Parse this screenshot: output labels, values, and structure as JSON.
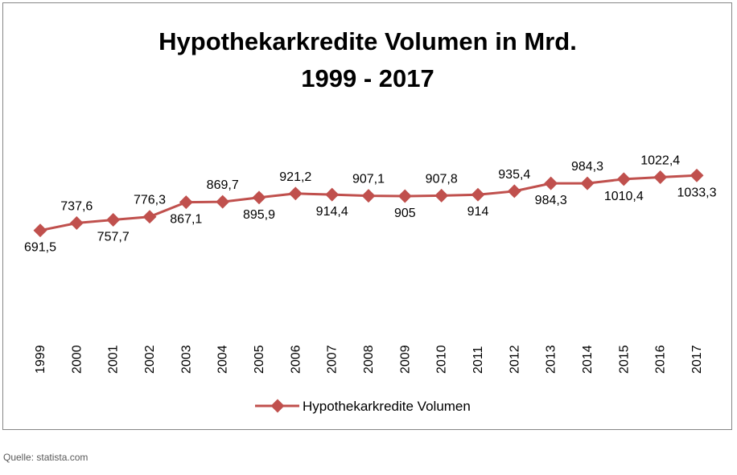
{
  "chart_data": {
    "type": "line",
    "title_line1": "Hypothekarkredite Volumen in Mrd.",
    "title_line2": "1999 - 2017",
    "categories": [
      "1999",
      "2000",
      "2001",
      "2002",
      "2003",
      "2004",
      "2005",
      "2006",
      "2007",
      "2008",
      "2009",
      "2010",
      "2011",
      "2012",
      "2013",
      "2014",
      "2015",
      "2016",
      "2017"
    ],
    "series": [
      {
        "name": "Hypothekarkredite Volumen",
        "values": [
          691.5,
          737.6,
          757.7,
          776.3,
          867.1,
          869.7,
          895.9,
          921.2,
          914.4,
          907.1,
          905,
          907.8,
          914,
          935.4,
          984.3,
          984.3,
          1010.4,
          1022.4,
          1033.3
        ],
        "labels": [
          "691,5",
          "737,6",
          "757,7",
          "776,3",
          "867,1",
          "869,7",
          "895,9",
          "921,2",
          "914,4",
          "907,1",
          "905",
          "907,8",
          "914",
          "935,4",
          "984,3",
          "984,3",
          "1010,4",
          "1022,4",
          "1033,3"
        ],
        "label_position": [
          "below",
          "above",
          "below",
          "above",
          "below",
          "above",
          "below",
          "above",
          "below",
          "above",
          "below",
          "above",
          "below",
          "above",
          "below",
          "above",
          "below",
          "above",
          "below"
        ],
        "color": "#c0504d"
      }
    ],
    "ylim": [
      0,
      2100
    ],
    "grid": false,
    "legend_position": "bottom",
    "xlabel": "",
    "ylabel": ""
  },
  "source": "Quelle: statista.com"
}
